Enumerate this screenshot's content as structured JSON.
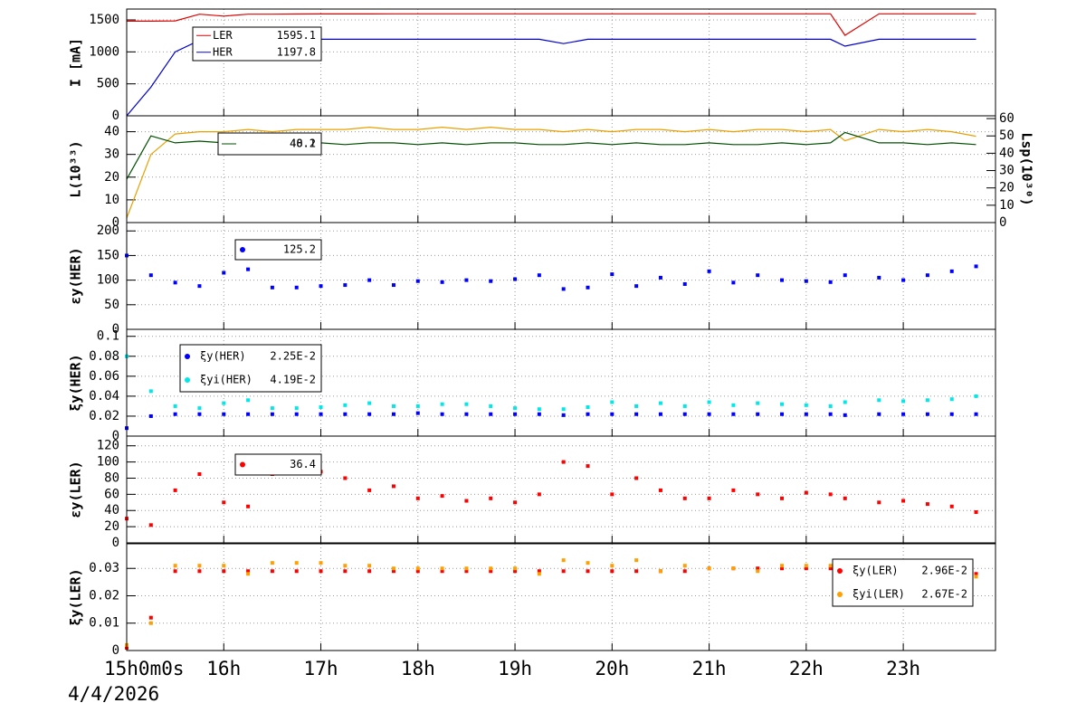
{
  "chart_data": [
    {
      "type": "line",
      "ylabel": "I [mA]",
      "x": [
        15,
        15.25,
        15.5,
        15.75,
        16,
        16.25,
        16.5,
        16.75,
        17,
        17.25,
        17.5,
        17.75,
        18,
        18.25,
        18.5,
        18.75,
        19,
        19.25,
        19.5,
        19.75,
        20,
        20.25,
        20.5,
        20.75,
        21,
        21.25,
        21.5,
        21.75,
        22,
        22.25,
        22.4,
        22.75,
        23,
        23.25,
        23.5,
        23.75
      ],
      "xlim": [
        15,
        23.95
      ],
      "xticks": [
        15,
        16,
        17,
        18,
        19,
        20,
        21,
        22,
        23
      ],
      "ylim": [
        0,
        1670
      ],
      "yticks": [
        0,
        500,
        1000,
        1500
      ],
      "grid": true,
      "series": [
        {
          "name": "LER",
          "legend_value": "1595.1",
          "color": "#e00000",
          "values": [
            1480,
            1480,
            1485,
            1590,
            1560,
            1590,
            1590,
            1592,
            1593,
            1594,
            1594,
            1595,
            1595,
            1595,
            1595,
            1595,
            1595,
            1595,
            1595,
            1595,
            1595,
            1595,
            1595,
            1595,
            1595,
            1595,
            1595,
            1595,
            1595,
            1595,
            1260,
            1595,
            1595,
            1595,
            1595,
            1595
          ]
        },
        {
          "name": "HER",
          "legend_value": "1197.8",
          "color": "#0000d0",
          "values": [
            0,
            450,
            1000,
            1180,
            1190,
            1195,
            1196,
            1197,
            1197,
            1197,
            1197,
            1197,
            1197,
            1197,
            1197,
            1197,
            1197,
            1197,
            1130,
            1197,
            1197,
            1197,
            1197,
            1197,
            1197,
            1197,
            1197,
            1197,
            1197,
            1197,
            1090,
            1197,
            1197,
            1197,
            1197,
            1198
          ]
        }
      ]
    },
    {
      "type": "line",
      "ylabel": "L(10³³)",
      "y2label": "Lsp(10³⁰)",
      "x": [
        15,
        15.25,
        15.5,
        15.75,
        16,
        16.25,
        16.5,
        16.75,
        17,
        17.25,
        17.5,
        17.75,
        18,
        18.25,
        18.5,
        18.75,
        19,
        19.25,
        19.5,
        19.75,
        20,
        20.25,
        20.5,
        20.75,
        21,
        21.25,
        21.5,
        21.75,
        22,
        22.25,
        22.4,
        22.75,
        23,
        23.25,
        23.5,
        23.75
      ],
      "xlim": [
        15,
        23.95
      ],
      "xticks": [
        15,
        16,
        17,
        18,
        19,
        20,
        21,
        22,
        23
      ],
      "ylim": [
        0,
        47
      ],
      "yticks": [
        0,
        10,
        20,
        30,
        40
      ],
      "y2lim": [
        0,
        61.6
      ],
      "y2ticks": [
        0,
        10,
        20,
        30,
        40,
        50,
        60
      ],
      "grid": true,
      "series": [
        {
          "legend_value": "40.1",
          "color": "#e8a000",
          "values": [
            2,
            30,
            39,
            40,
            40,
            41,
            40,
            41,
            41,
            41,
            42,
            41,
            41,
            42,
            41,
            42,
            41,
            41,
            40,
            41,
            40,
            41,
            41,
            40,
            41,
            40,
            41,
            41,
            40,
            41,
            36,
            41,
            40,
            41,
            40,
            38
          ]
        },
        {
          "legend_value": "48.2",
          "color": "#005000",
          "axis": "y2",
          "values": [
            25,
            50,
            46,
            47,
            46,
            47,
            46,
            45,
            46,
            45,
            46,
            46,
            45,
            46,
            45,
            46,
            46,
            45,
            45,
            46,
            45,
            46,
            45,
            45,
            46,
            45,
            45,
            46,
            45,
            46,
            52,
            46,
            46,
            45,
            46,
            45
          ]
        }
      ]
    },
    {
      "type": "scatter",
      "ylabel": "εy(HER)",
      "x": [
        15,
        15.25,
        15.5,
        15.75,
        16,
        16.25,
        16.5,
        16.75,
        17,
        17.25,
        17.5,
        17.75,
        18,
        18.25,
        18.5,
        18.75,
        19,
        19.25,
        19.5,
        19.75,
        20,
        20.25,
        20.5,
        20.75,
        21,
        21.25,
        21.5,
        21.75,
        22,
        22.25,
        22.4,
        22.75,
        23,
        23.25,
        23.5,
        23.75
      ],
      "xlim": [
        15,
        23.95
      ],
      "xticks": [
        15,
        16,
        17,
        18,
        19,
        20,
        21,
        22,
        23
      ],
      "ylim": [
        0,
        217
      ],
      "yticks": [
        0,
        50,
        100,
        150,
        200
      ],
      "grid": true,
      "series": [
        {
          "legend_value": "125.2",
          "color": "#0000ff",
          "values": [
            150,
            110,
            95,
            88,
            115,
            122,
            85,
            85,
            88,
            90,
            100,
            90,
            98,
            96,
            100,
            98,
            102,
            110,
            82,
            85,
            112,
            88,
            105,
            92,
            118,
            95,
            110,
            100,
            98,
            96,
            110,
            105,
            100,
            110,
            118,
            128
          ]
        }
      ]
    },
    {
      "type": "scatter",
      "ylabel": "ξy(HER)",
      "x": [
        15,
        15.25,
        15.5,
        15.75,
        16,
        16.25,
        16.5,
        16.75,
        17,
        17.25,
        17.5,
        17.75,
        18,
        18.25,
        18.5,
        18.75,
        19,
        19.25,
        19.5,
        19.75,
        20,
        20.25,
        20.5,
        20.75,
        21,
        21.25,
        21.5,
        21.75,
        22,
        22.25,
        22.4,
        22.75,
        23,
        23.25,
        23.5,
        23.75
      ],
      "xlim": [
        15,
        23.95
      ],
      "xticks": [
        15,
        16,
        17,
        18,
        19,
        20,
        21,
        22,
        23
      ],
      "ylim": [
        0,
        0.107
      ],
      "yticks": [
        0,
        0.02,
        0.04,
        0.06,
        0.08,
        0.1
      ],
      "grid": true,
      "series": [
        {
          "name": "ξy(HER)",
          "legend_value": "2.25E-2",
          "color": "#0000ff",
          "values": [
            0.008,
            0.02,
            0.022,
            0.022,
            0.022,
            0.022,
            0.022,
            0.022,
            0.022,
            0.022,
            0.022,
            0.022,
            0.023,
            0.022,
            0.022,
            0.022,
            0.022,
            0.022,
            0.021,
            0.022,
            0.022,
            0.022,
            0.022,
            0.022,
            0.022,
            0.022,
            0.022,
            0.022,
            0.022,
            0.022,
            0.021,
            0.022,
            0.022,
            0.022,
            0.022,
            0.022
          ]
        },
        {
          "name": "ξyi(HER)",
          "legend_value": "4.19E-2",
          "color": "#00e8e8",
          "values": [
            0.08,
            0.045,
            0.03,
            0.028,
            0.033,
            0.036,
            0.028,
            0.028,
            0.029,
            0.031,
            0.033,
            0.03,
            0.03,
            0.032,
            0.032,
            0.03,
            0.028,
            0.027,
            0.027,
            0.029,
            0.034,
            0.03,
            0.033,
            0.03,
            0.034,
            0.031,
            0.033,
            0.032,
            0.031,
            0.03,
            0.034,
            0.036,
            0.035,
            0.036,
            0.037,
            0.04
          ]
        }
      ]
    },
    {
      "type": "scatter",
      "ylabel": "εy(LER)",
      "x": [
        15,
        15.25,
        15.5,
        15.75,
        16,
        16.25,
        16.5,
        16.75,
        17,
        17.25,
        17.5,
        17.75,
        18,
        18.25,
        18.5,
        18.75,
        19,
        19.25,
        19.5,
        19.75,
        20,
        20.25,
        20.5,
        20.75,
        21,
        21.25,
        21.5,
        21.75,
        22,
        22.25,
        22.4,
        22.75,
        23,
        23.25,
        23.5,
        23.75
      ],
      "xlim": [
        15,
        23.95
      ],
      "xticks": [
        15,
        16,
        17,
        18,
        19,
        20,
        21,
        22,
        23
      ],
      "ylim": [
        0,
        132
      ],
      "yticks": [
        0,
        20,
        40,
        60,
        80,
        100,
        120
      ],
      "grid": true,
      "series": [
        {
          "legend_value": "36.4",
          "color": "#ff0000",
          "values": [
            30,
            22,
            65,
            85,
            50,
            45,
            85,
            90,
            88,
            80,
            65,
            70,
            55,
            58,
            52,
            55,
            50,
            60,
            100,
            95,
            60,
            80,
            65,
            55,
            55,
            65,
            60,
            55,
            62,
            60,
            55,
            50,
            52,
            48,
            45,
            38
          ]
        }
      ]
    },
    {
      "type": "scatter",
      "ylabel": "ξy(LER)",
      "date": "4/4/2026",
      "x": [
        15,
        15.25,
        15.5,
        15.75,
        16,
        16.25,
        16.5,
        16.75,
        17,
        17.25,
        17.5,
        17.75,
        18,
        18.25,
        18.5,
        18.75,
        19,
        19.25,
        19.5,
        19.75,
        20,
        20.25,
        20.5,
        20.75,
        21,
        21.25,
        21.5,
        21.75,
        22,
        22.25,
        22.4,
        22.75,
        23,
        23.25,
        23.5,
        23.75
      ],
      "xlim": [
        15,
        23.95
      ],
      "xticks": [
        {
          "value": 15,
          "label": "15h0m0s"
        },
        {
          "value": 16,
          "label": "16h"
        },
        {
          "value": 17,
          "label": "17h"
        },
        {
          "value": 18,
          "label": "18h"
        },
        {
          "value": 19,
          "label": "19h"
        },
        {
          "value": 20,
          "label": "20h"
        },
        {
          "value": 21,
          "label": "21h"
        },
        {
          "value": 22,
          "label": "22h"
        },
        {
          "value": 23,
          "label": "23h"
        }
      ],
      "ylim": [
        0,
        0.039
      ],
      "yticks": [
        0,
        0.01,
        0.02,
        0.03
      ],
      "grid": true,
      "series": [
        {
          "name": "ξy(LER)",
          "legend_value": "2.96E-2",
          "color": "#ff0000",
          "values": [
            0.001,
            0.012,
            0.029,
            0.029,
            0.029,
            0.029,
            0.029,
            0.029,
            0.029,
            0.029,
            0.029,
            0.029,
            0.029,
            0.029,
            0.029,
            0.029,
            0.029,
            0.029,
            0.029,
            0.029,
            0.029,
            0.029,
            0.029,
            0.029,
            0.03,
            0.03,
            0.03,
            0.03,
            0.03,
            0.03,
            0.03,
            0.03,
            0.03,
            0.03,
            0.029,
            0.028
          ]
        },
        {
          "name": "ξyi(LER)",
          "legend_value": "2.67E-2",
          "color": "#ffa000",
          "values": [
            0.002,
            0.01,
            0.031,
            0.031,
            0.031,
            0.028,
            0.032,
            0.032,
            0.032,
            0.031,
            0.031,
            0.03,
            0.03,
            0.03,
            0.03,
            0.03,
            0.03,
            0.028,
            0.033,
            0.032,
            0.031,
            0.033,
            0.029,
            0.031,
            0.03,
            0.03,
            0.029,
            0.031,
            0.031,
            0.031,
            0.031,
            0.031,
            0.031,
            0.029,
            0.03,
            0.027
          ]
        }
      ]
    }
  ]
}
